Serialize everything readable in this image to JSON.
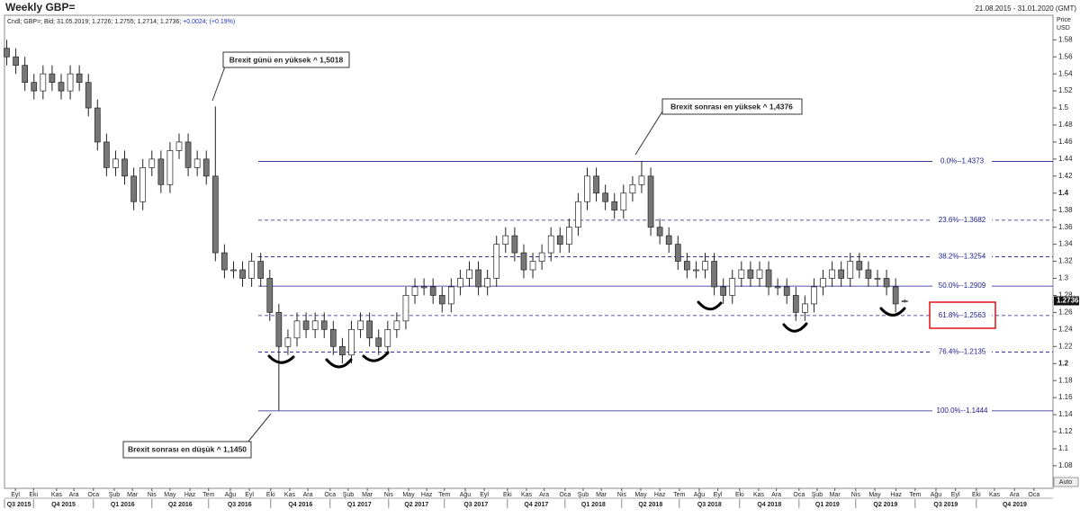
{
  "chart_data": {
    "type": "candlestick",
    "title": "Weekly GBP=",
    "date_range": "21.08.2015 - 31.01.2020 (GMT)",
    "legend": "Cndl; GBP=; Bid; 31.05.2019; 1.2726; 1.2755; 1.2714; 1.2736;",
    "change": "+0.0024; (+0.19%)",
    "ylabel": "Price",
    "yunit": "USD",
    "last_price": 1.2736,
    "auto_label": "Auto",
    "up_color": "#ffffff",
    "down_color": "#777777",
    "edge_color": "#222222",
    "x": [
      0,
      2,
      4,
      6,
      8,
      10,
      12,
      14,
      16,
      18,
      20,
      22,
      24,
      26,
      28,
      30,
      32,
      34,
      36,
      38,
      40,
      42,
      44,
      46,
      48,
      50,
      52,
      54,
      56,
      58,
      60,
      62,
      64,
      66,
      68,
      70,
      72,
      74,
      76,
      78,
      80,
      82,
      84,
      86,
      88,
      90,
      92,
      94,
      96,
      98,
      100,
      102,
      104,
      106,
      108,
      110,
      112,
      114,
      116,
      118,
      120,
      122,
      124,
      126,
      128,
      130,
      132,
      134,
      136,
      138,
      140,
      142,
      144,
      146,
      148,
      150,
      152,
      154,
      156,
      158,
      160,
      162,
      164,
      166,
      168,
      170,
      172,
      174,
      176,
      178,
      180,
      182,
      184,
      186,
      188,
      190,
      192,
      194,
      196,
      198
    ],
    "open": [
      1.57,
      1.56,
      1.55,
      1.53,
      1.52,
      1.54,
      1.53,
      1.52,
      1.54,
      1.53,
      1.5,
      1.46,
      1.43,
      1.44,
      1.42,
      1.39,
      1.43,
      1.44,
      1.41,
      1.45,
      1.46,
      1.43,
      1.44,
      1.42,
      1.33,
      1.31,
      1.31,
      1.3,
      1.32,
      1.3,
      1.26,
      1.22,
      1.23,
      1.25,
      1.24,
      1.25,
      1.24,
      1.22,
      1.21,
      1.24,
      1.25,
      1.23,
      1.22,
      1.24,
      1.25,
      1.28,
      1.29,
      1.29,
      1.28,
      1.27,
      1.29,
      1.3,
      1.31,
      1.29,
      1.3,
      1.34,
      1.35,
      1.33,
      1.31,
      1.32,
      1.33,
      1.35,
      1.34,
      1.36,
      1.39,
      1.42,
      1.4,
      1.39,
      1.38,
      1.4,
      1.41,
      1.42,
      1.36,
      1.35,
      1.34,
      1.32,
      1.31,
      1.31,
      1.32,
      1.29,
      1.28,
      1.3,
      1.31,
      1.3,
      1.31,
      1.29,
      1.29,
      1.28,
      1.26,
      1.27,
      1.29,
      1.3,
      1.31,
      1.3,
      1.32,
      1.31,
      1.3,
      1.3,
      1.29,
      1.2726
    ],
    "high": [
      1.58,
      1.57,
      1.56,
      1.54,
      1.55,
      1.55,
      1.54,
      1.55,
      1.55,
      1.54,
      1.51,
      1.47,
      1.45,
      1.45,
      1.43,
      1.44,
      1.45,
      1.45,
      1.46,
      1.47,
      1.47,
      1.45,
      1.45,
      1.5018,
      1.34,
      1.32,
      1.32,
      1.33,
      1.33,
      1.31,
      1.27,
      1.24,
      1.26,
      1.26,
      1.26,
      1.26,
      1.25,
      1.23,
      1.25,
      1.26,
      1.26,
      1.24,
      1.25,
      1.26,
      1.29,
      1.3,
      1.3,
      1.3,
      1.29,
      1.3,
      1.31,
      1.32,
      1.32,
      1.31,
      1.35,
      1.36,
      1.36,
      1.34,
      1.33,
      1.34,
      1.36,
      1.36,
      1.37,
      1.4,
      1.43,
      1.43,
      1.41,
      1.4,
      1.41,
      1.42,
      1.4376,
      1.43,
      1.37,
      1.36,
      1.35,
      1.33,
      1.32,
      1.33,
      1.33,
      1.3,
      1.31,
      1.32,
      1.32,
      1.32,
      1.32,
      1.3,
      1.3,
      1.29,
      1.28,
      1.3,
      1.31,
      1.32,
      1.32,
      1.33,
      1.33,
      1.32,
      1.31,
      1.31,
      1.3,
      1.2755
    ],
    "low": [
      1.55,
      1.54,
      1.52,
      1.51,
      1.51,
      1.52,
      1.51,
      1.51,
      1.52,
      1.49,
      1.45,
      1.42,
      1.42,
      1.41,
      1.38,
      1.38,
      1.42,
      1.4,
      1.4,
      1.44,
      1.42,
      1.42,
      1.41,
      1.32,
      1.3,
      1.3,
      1.29,
      1.29,
      1.29,
      1.25,
      1.145,
      1.21,
      1.22,
      1.23,
      1.23,
      1.23,
      1.21,
      1.2,
      1.2,
      1.23,
      1.22,
      1.21,
      1.21,
      1.23,
      1.24,
      1.27,
      1.28,
      1.27,
      1.26,
      1.26,
      1.28,
      1.29,
      1.28,
      1.28,
      1.29,
      1.33,
      1.32,
      1.3,
      1.3,
      1.31,
      1.32,
      1.33,
      1.33,
      1.35,
      1.38,
      1.39,
      1.38,
      1.37,
      1.37,
      1.39,
      1.4,
      1.35,
      1.34,
      1.33,
      1.31,
      1.3,
      1.3,
      1.3,
      1.28,
      1.27,
      1.27,
      1.29,
      1.29,
      1.29,
      1.28,
      1.28,
      1.27,
      1.25,
      1.25,
      1.26,
      1.28,
      1.29,
      1.29,
      1.29,
      1.3,
      1.29,
      1.29,
      1.28,
      1.26,
      1.2714
    ],
    "close": [
      1.56,
      1.55,
      1.53,
      1.52,
      1.54,
      1.53,
      1.52,
      1.54,
      1.53,
      1.5,
      1.46,
      1.43,
      1.44,
      1.42,
      1.39,
      1.43,
      1.44,
      1.41,
      1.45,
      1.46,
      1.43,
      1.44,
      1.42,
      1.33,
      1.31,
      1.31,
      1.3,
      1.32,
      1.3,
      1.26,
      1.22,
      1.23,
      1.25,
      1.24,
      1.25,
      1.24,
      1.22,
      1.21,
      1.24,
      1.25,
      1.23,
      1.22,
      1.24,
      1.25,
      1.28,
      1.29,
      1.29,
      1.28,
      1.27,
      1.29,
      1.3,
      1.31,
      1.29,
      1.3,
      1.34,
      1.35,
      1.33,
      1.31,
      1.32,
      1.33,
      1.35,
      1.34,
      1.36,
      1.39,
      1.42,
      1.4,
      1.39,
      1.38,
      1.4,
      1.41,
      1.42,
      1.36,
      1.35,
      1.34,
      1.32,
      1.31,
      1.31,
      1.32,
      1.29,
      1.28,
      1.3,
      1.31,
      1.3,
      1.31,
      1.29,
      1.29,
      1.28,
      1.26,
      1.27,
      1.29,
      1.3,
      1.31,
      1.3,
      1.32,
      1.31,
      1.3,
      1.3,
      1.29,
      1.27,
      1.2736
    ],
    "xlim": [
      -0.5,
      230.7
    ],
    "ylim": [
      1.0535,
      1.6035
    ],
    "yticks": [
      1.08,
      1.1,
      1.12,
      1.14,
      1.16,
      1.18,
      1.2,
      1.22,
      1.24,
      1.26,
      1.28,
      1.3,
      1.32,
      1.34,
      1.36,
      1.38,
      1.4,
      1.42,
      1.44,
      1.46,
      1.48,
      1.5,
      1.52,
      1.54,
      1.56,
      1.58
    ],
    "xticks": [
      {
        "value": 1.9,
        "label": "Eyl"
      },
      {
        "value": 5.9,
        "label": "Eki"
      },
      {
        "value": 11.0,
        "label": "Kas"
      },
      {
        "value": 14.8,
        "label": "Ara"
      },
      {
        "value": 19.1,
        "label": "Oca"
      },
      {
        "value": 23.7,
        "label": "Şub"
      },
      {
        "value": 27.7,
        "label": "Mar"
      },
      {
        "value": 32.0,
        "label": "Nis"
      },
      {
        "value": 36.0,
        "label": "May"
      },
      {
        "value": 40.4,
        "label": "Haz"
      },
      {
        "value": 44.5,
        "label": "Tem"
      },
      {
        "value": 49.3,
        "label": "Ağu"
      },
      {
        "value": 53.5,
        "label": "Eyl"
      },
      {
        "value": 58.2,
        "label": "Eki"
      },
      {
        "value": 62.4,
        "label": "Kas"
      },
      {
        "value": 66.4,
        "label": "Ara"
      },
      {
        "value": 71.3,
        "label": "Oca"
      },
      {
        "value": 75.3,
        "label": "Şub"
      },
      {
        "value": 79.5,
        "label": "Mar"
      },
      {
        "value": 84.2,
        "label": "Nis"
      },
      {
        "value": 88.6,
        "label": "May"
      },
      {
        "value": 92.6,
        "label": "Haz"
      },
      {
        "value": 96.5,
        "label": "Tem"
      },
      {
        "value": 101.1,
        "label": "Ağu"
      },
      {
        "value": 105.3,
        "label": "Eyl"
      },
      {
        "value": 110.4,
        "label": "Eki"
      },
      {
        "value": 114.6,
        "label": "Kas"
      },
      {
        "value": 118.5,
        "label": "Ara"
      },
      {
        "value": 123.1,
        "label": "Oca"
      },
      {
        "value": 127.1,
        "label": "Şub"
      },
      {
        "value": 131.1,
        "label": "Mar"
      },
      {
        "value": 135.6,
        "label": "Nis"
      },
      {
        "value": 139.8,
        "label": "May"
      },
      {
        "value": 144.0,
        "label": "Haz"
      },
      {
        "value": 148.3,
        "label": "Tem"
      },
      {
        "value": 152.7,
        "label": "Ağu"
      },
      {
        "value": 156.8,
        "label": "Eyl"
      },
      {
        "value": 161.6,
        "label": "Eki"
      },
      {
        "value": 165.8,
        "label": "Kas"
      },
      {
        "value": 169.7,
        "label": "Ara"
      },
      {
        "value": 174.7,
        "label": "Oca"
      },
      {
        "value": 178.7,
        "label": "Şub"
      },
      {
        "value": 182.6,
        "label": "Mar"
      },
      {
        "value": 187.2,
        "label": "Nis"
      },
      {
        "value": 191.4,
        "label": "May"
      },
      {
        "value": 196.1,
        "label": "Haz"
      },
      {
        "value": 200.3,
        "label": "Tem"
      },
      {
        "value": 204.9,
        "label": "Ağu"
      },
      {
        "value": 209.2,
        "label": "Eyl"
      },
      {
        "value": 213.8,
        "label": "Eki"
      },
      {
        "value": 217.8,
        "label": "Kas"
      },
      {
        "value": 222.2,
        "label": "Ara"
      },
      {
        "value": 226.5,
        "label": "Oca"
      }
    ],
    "quarter_ticks": [
      {
        "value": -0.5,
        "label": "Q3 2015"
      },
      {
        "value": 5.9,
        "label": "Q4 2015"
      },
      {
        "value": 19.1,
        "label": "Q1 2016"
      },
      {
        "value": 32.0,
        "label": "Q2 2016"
      },
      {
        "value": 44.5,
        "label": "Q3 2016"
      },
      {
        "value": 58.2,
        "label": "Q4 2016"
      },
      {
        "value": 71.3,
        "label": "Q1 2017"
      },
      {
        "value": 84.2,
        "label": "Q2 2017"
      },
      {
        "value": 96.5,
        "label": "Q3 2017"
      },
      {
        "value": 110.4,
        "label": "Q4 2017"
      },
      {
        "value": 123.1,
        "label": "Q1 2018"
      },
      {
        "value": 135.6,
        "label": "Q2 2018"
      },
      {
        "value": 148.3,
        "label": "Q3 2018"
      },
      {
        "value": 161.6,
        "label": "Q4 2018"
      },
      {
        "value": 174.7,
        "label": "Q1 2019"
      },
      {
        "value": 187.2,
        "label": "Q2 2019"
      },
      {
        "value": 200.3,
        "label": "Q3 2019"
      },
      {
        "value": 213.8,
        "label": "Q4 2019"
      }
    ],
    "fib_levels": [
      {
        "value": 1.4373,
        "label": "0.0%--1.4373",
        "style": "solid"
      },
      {
        "value": 1.3682,
        "label": "23.6%--1.3682",
        "style": "dashed"
      },
      {
        "value": 1.3254,
        "label": "38.2%--1.3254",
        "style": "dashed"
      },
      {
        "value": 1.2909,
        "label": "50.0%--1.2909",
        "style": "solid"
      },
      {
        "value": 1.2563,
        "label": "61.8%--1.2563",
        "style": "dashed"
      },
      {
        "value": 1.2135,
        "label": "76.4%--1.2135",
        "style": "dashed"
      },
      {
        "value": 1.1444,
        "label": "100.0%--1.1444",
        "style": "solid"
      }
    ],
    "fib_color": "#1a1a8c",
    "annotations": [
      "Brexit günü en yüksek ^ 1,5018",
      "Brexit sonrası en yüksek ^ 1,4376",
      "Brexit sonrası en düşük ^ 1,1450"
    ]
  }
}
